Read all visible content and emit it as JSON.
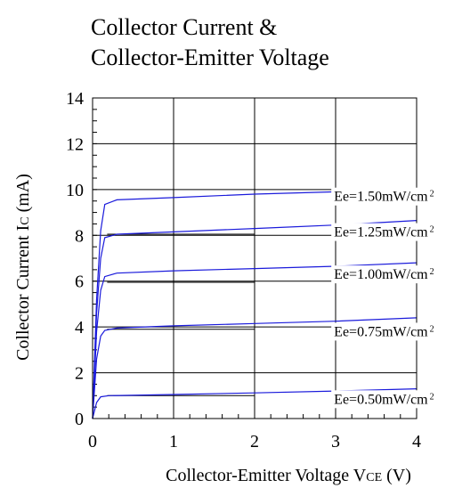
{
  "chart_data": {
    "type": "line",
    "title_lines": [
      "Collector Current &",
      "Collector-Emitter Voltage"
    ],
    "xlabel": {
      "main": "Collector-Emitter Voltage V",
      "sub": "CE",
      "unit": " (V)"
    },
    "ylabel": {
      "main": "Collector Current I",
      "sub": "C",
      "unit": " (mA)"
    },
    "xlim": [
      0,
      4
    ],
    "ylim": [
      0,
      14
    ],
    "x_ticks": [
      0,
      1,
      2,
      3,
      4
    ],
    "y_ticks": [
      0,
      2,
      4,
      6,
      8,
      10,
      12,
      14
    ],
    "grid": true,
    "line_color": "#1a1adb",
    "series": [
      {
        "name": "Ee=0.50mW/cm²",
        "label_main": "Ee=0.50mW/cm",
        "label_sup": "2",
        "label_at": {
          "x": 2.98,
          "y": 0.65
        },
        "points": [
          [
            0,
            0
          ],
          [
            0.05,
            0.7
          ],
          [
            0.1,
            0.95
          ],
          [
            0.2,
            1.0
          ],
          [
            1,
            1.05
          ],
          [
            2,
            1.12
          ],
          [
            3,
            1.2
          ],
          [
            4,
            1.3
          ]
        ]
      },
      {
        "name": "Ee=0.75mW/cm²",
        "label_main": "Ee=0.75mW/cm",
        "label_sup": "2",
        "label_at": {
          "x": 2.98,
          "y": 3.6
        },
        "points": [
          [
            0,
            0
          ],
          [
            0.05,
            2.6
          ],
          [
            0.1,
            3.6
          ],
          [
            0.15,
            3.85
          ],
          [
            0.3,
            3.95
          ],
          [
            1,
            4.05
          ],
          [
            2,
            4.15
          ],
          [
            3,
            4.25
          ],
          [
            4,
            4.4
          ]
        ]
      },
      {
        "name": "Ee=1.00mW/cm²",
        "label_main": "Ee=1.00mW/cm",
        "label_sup": "2",
        "label_at": {
          "x": 2.98,
          "y": 6.1
        },
        "points": [
          [
            0,
            0
          ],
          [
            0.05,
            3.8
          ],
          [
            0.1,
            5.6
          ],
          [
            0.15,
            6.2
          ],
          [
            0.3,
            6.35
          ],
          [
            1,
            6.45
          ],
          [
            2,
            6.55
          ],
          [
            3,
            6.65
          ],
          [
            4,
            6.8
          ]
        ]
      },
      {
        "name": "Ee=1.25mW/cm²",
        "label_main": "Ee=1.25mW/cm",
        "label_sup": "2",
        "label_at": {
          "x": 2.98,
          "y": 7.95
        },
        "points": [
          [
            0,
            0
          ],
          [
            0.05,
            4.6
          ],
          [
            0.1,
            7.0
          ],
          [
            0.15,
            7.9
          ],
          [
            0.3,
            8.05
          ],
          [
            1,
            8.15
          ],
          [
            2,
            8.3
          ],
          [
            3,
            8.45
          ],
          [
            4,
            8.65
          ]
        ]
      },
      {
        "name": "Ee=1.50mW/cm²",
        "label_main": "Ee=1.50mW/cm",
        "label_sup": "2",
        "label_at": {
          "x": 2.98,
          "y": 9.5
        },
        "points": [
          [
            0,
            0
          ],
          [
            0.05,
            5.2
          ],
          [
            0.1,
            8.2
          ],
          [
            0.15,
            9.35
          ],
          [
            0.3,
            9.55
          ],
          [
            1,
            9.65
          ],
          [
            2,
            9.8
          ],
          [
            3,
            9.9
          ],
          [
            4,
            10.05
          ]
        ]
      }
    ],
    "reference_lines": [
      {
        "x": [
          0.18,
          2.0
        ],
        "y": 1.0
      },
      {
        "x": [
          0.18,
          2.0
        ],
        "y": 3.9
      },
      {
        "x": [
          0.18,
          2.0
        ],
        "y": 5.95
      },
      {
        "x": [
          0.18,
          2.0
        ],
        "y": 8.05
      }
    ]
  }
}
